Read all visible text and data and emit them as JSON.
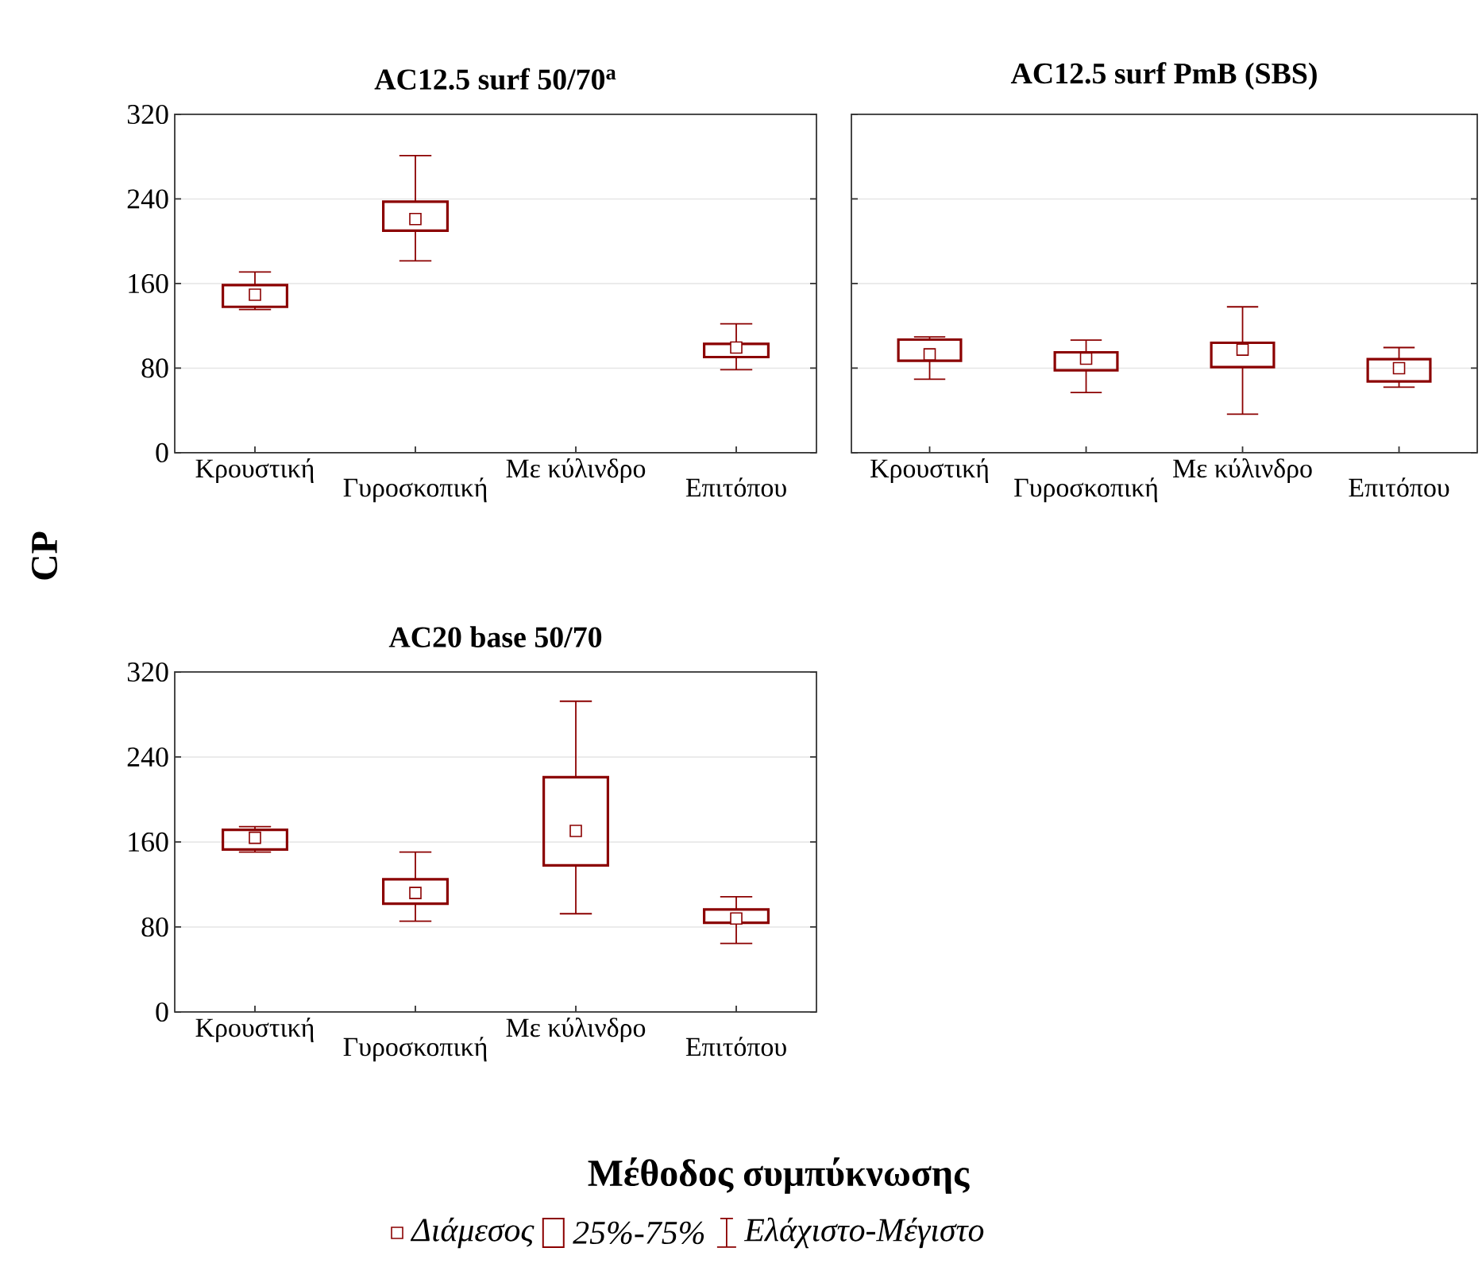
{
  "chart_data": [
    {
      "type": "box",
      "title": "AC12.5 surf 50/70$^{a}$",
      "ylabel": "CP",
      "xlabel": "Μέθοδος συμπύκνωσης",
      "annotations": [
        "Διάμεσος",
        "25%-75%",
        "Ελάχιστο-Μέγιστο"
      ],
      "color": "#8b0000",
      "grid": "y",
      "categories": [
        "Κρουστική",
        "Γυροσκοπική",
        "Με κύλινδρο",
        "Επιτόπου"
      ],
      "ylim": [
        0,
        320
      ],
      "yticks": [
        0,
        80,
        160,
        240,
        320
      ],
      "boxes": [
        {
          "low": 135.5,
          "q1": 138,
          "median": 149.5,
          "q3": 158.5,
          "high": 171
        },
        {
          "low": 181.5,
          "q1": 210,
          "median": 221,
          "q3": 237.5,
          "high": 281
        },
        null,
        {
          "low": 78.5,
          "q1": 90.5,
          "median": 99.5,
          "q3": 103,
          "high": 122
        }
      ]
    },
    {
      "type": "box",
      "title": "AC12.5 surf PmB (SBS)",
      "color": "#8b0000",
      "grid": "y",
      "tick_labels": "x",
      "categories": [
        "Κρουστική",
        "Γυροσκοπική",
        "Με κύλινδρο",
        "Επιτόπου"
      ],
      "ylim": [
        0,
        320
      ],
      "yticks": [
        0,
        80,
        160,
        240,
        320
      ],
      "boxes": [
        {
          "low": 69.5,
          "q1": 87,
          "median": 93,
          "q3": 107,
          "high": 109.5
        },
        {
          "low": 57,
          "q1": 78,
          "median": 89,
          "q3": 95,
          "high": 106.5
        },
        {
          "low": 36.5,
          "q1": 81,
          "median": 97.5,
          "q3": 104,
          "high": 138
        },
        {
          "low": 62,
          "q1": 67.5,
          "median": 80,
          "q3": 88.5,
          "high": 99.5
        }
      ]
    },
    {
      "type": "box",
      "title": "AC20 base 50/70",
      "color": "#8b0000",
      "grid": "y",
      "categories": [
        "Κρουστική",
        "Γυροσκοπική",
        "Με κύλινδρο",
        "Επιτόπου"
      ],
      "ylim": [
        0,
        320
      ],
      "yticks": [
        0,
        80,
        160,
        240,
        320
      ],
      "boxes": [
        {
          "low": 150.5,
          "q1": 153,
          "median": 164,
          "q3": 171.5,
          "high": 174.5
        },
        {
          "low": 85.5,
          "q1": 102,
          "median": 112,
          "q3": 125,
          "high": 150.5
        },
        {
          "low": 92.5,
          "q1": 138,
          "median": 170.5,
          "q3": 221,
          "high": 292.5
        },
        {
          "low": 64.5,
          "q1": 84,
          "median": 88,
          "q3": 96.5,
          "high": 108.5
        }
      ]
    }
  ]
}
